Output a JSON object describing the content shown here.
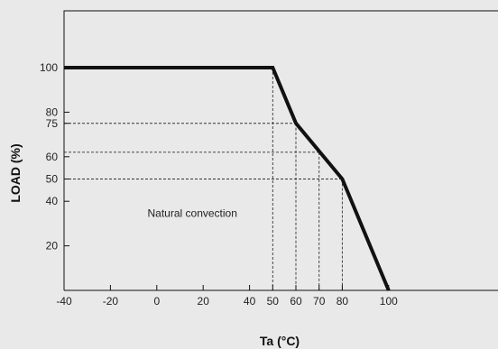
{
  "chart_data": {
    "type": "line",
    "xlabel": "Ta (°C)",
    "ylabel": "LOAD (%)",
    "xlim": [
      -40,
      140
    ],
    "ylim": [
      0,
      130
    ],
    "x_ticks": [
      -40,
      -20,
      0,
      20,
      40,
      50,
      60,
      70,
      80,
      100
    ],
    "x_tick_labels": [
      "-40",
      "-20",
      "0",
      "20",
      "40",
      "50",
      "60",
      "70",
      "80",
      "100"
    ],
    "y_ticks": [
      20,
      40,
      50,
      60,
      75,
      80,
      100
    ],
    "y_tick_labels": [
      "20",
      "40",
      "50",
      "60",
      "75",
      "80",
      "100"
    ],
    "series": [
      {
        "x": [
          -40,
          50,
          60,
          80,
          100
        ],
        "y": [
          100,
          100,
          75,
          50,
          0
        ]
      }
    ],
    "reference_lines": [
      {
        "x": 50,
        "y": 100
      },
      {
        "x": 60,
        "y": 75
      },
      {
        "x": 70,
        "y": 62
      },
      {
        "x": 80,
        "y": 50
      }
    ],
    "annotations": [
      {
        "text": "Natural convection",
        "x": -4,
        "y": 33
      }
    ],
    "grid": false,
    "colors": {
      "line": "#111111",
      "background": "#e9e9e9",
      "dash": "#333333"
    }
  }
}
